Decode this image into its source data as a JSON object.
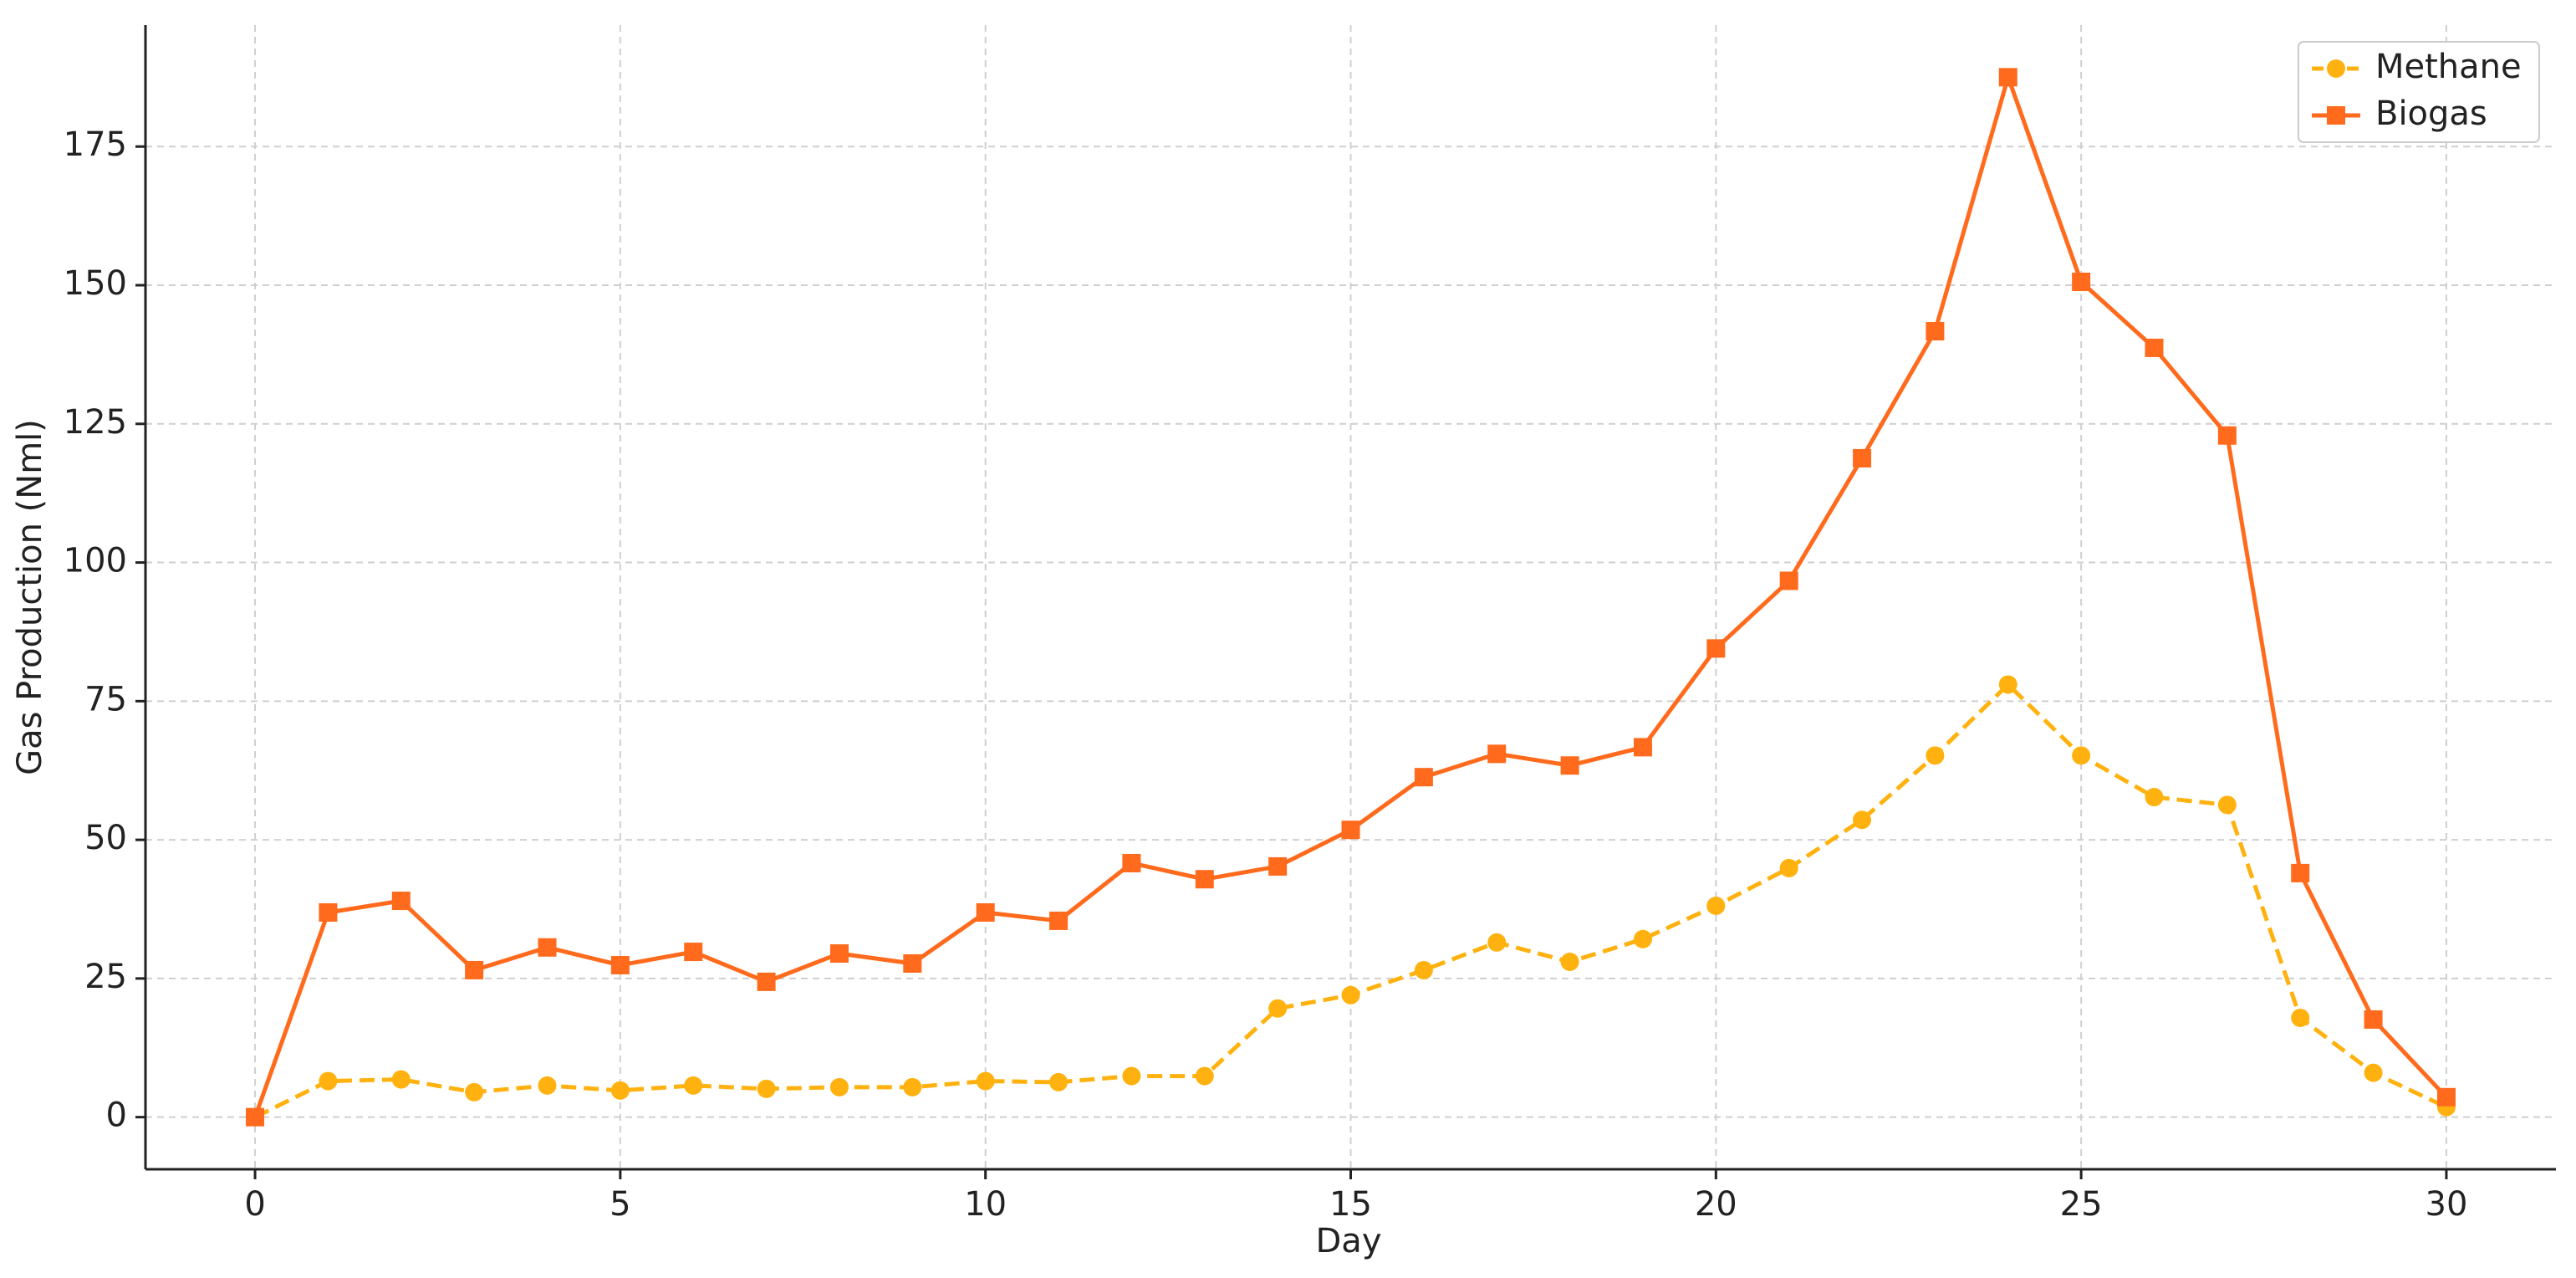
{
  "chart_data": {
    "type": "line",
    "x_label": "Day",
    "y_label": "Gas Production (Nml)",
    "x": [
      0,
      1,
      2,
      3,
      4,
      5,
      6,
      7,
      8,
      9,
      10,
      11,
      12,
      13,
      14,
      15,
      16,
      17,
      18,
      19,
      20,
      21,
      22,
      23,
      24,
      25,
      26,
      27,
      28,
      29,
      30
    ],
    "series": [
      {
        "name": "Methane",
        "color": "#ffb20f",
        "marker": "circle",
        "linestyle": "dashed",
        "values": [
          0,
          6.5,
          6.8,
          4.5,
          5.7,
          4.8,
          5.7,
          5.1,
          5.4,
          5.4,
          6.5,
          6.3,
          7.4,
          7.4,
          19.6,
          22,
          26.5,
          31.5,
          28,
          32.1,
          38.1,
          44.9,
          53.6,
          65.2,
          78,
          65.2,
          57.7,
          56.3,
          17.9,
          8,
          1.8
        ]
      },
      {
        "name": "Biogas",
        "color": "#ff6a1c",
        "marker": "square",
        "linestyle": "solid",
        "values": [
          0,
          36.9,
          39,
          26.5,
          30.6,
          27.4,
          29.8,
          24.4,
          29.5,
          27.7,
          36.9,
          35.4,
          45.8,
          42.9,
          45.2,
          51.8,
          61.3,
          65.5,
          63.4,
          66.7,
          84.5,
          96.7,
          118.8,
          141.7,
          187.5,
          150.6,
          138.7,
          122.9,
          44,
          17.6,
          3.6
        ]
      }
    ],
    "xlim": [
      -1.5,
      31.5
    ],
    "xticks": [
      0,
      5,
      10,
      15,
      20,
      25,
      30
    ],
    "ylim": [
      -9.4,
      196.9
    ],
    "yticks": [
      0,
      25,
      50,
      75,
      100,
      125,
      150,
      175
    ],
    "grid": true,
    "legend": "upper right"
  }
}
